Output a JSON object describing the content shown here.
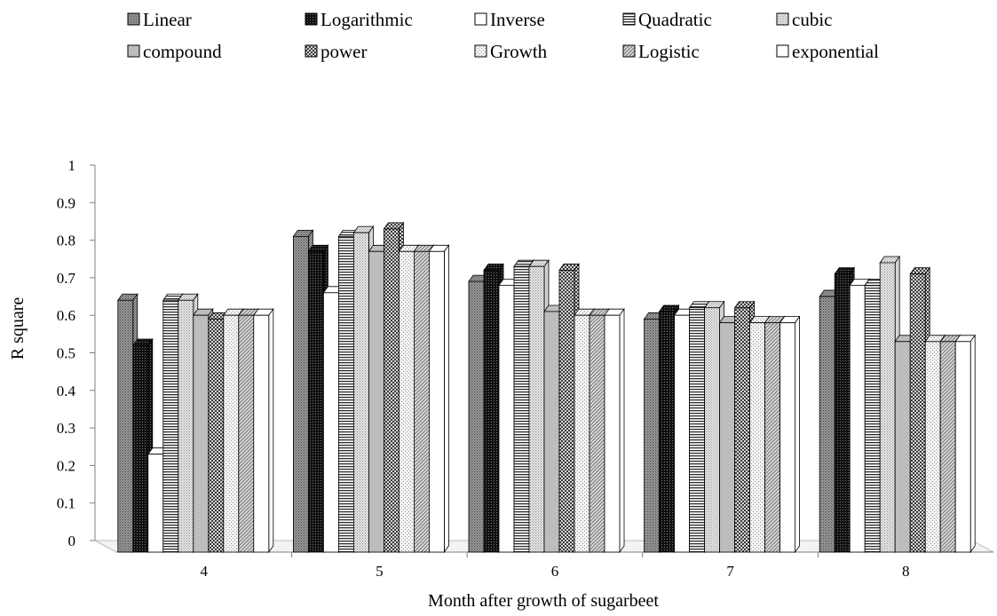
{
  "chart_data": {
    "type": "bar",
    "xlabel": "Month after growth of sugarbeet",
    "ylabel": "R square",
    "ylim": [
      0,
      1
    ],
    "yticks": [
      "0",
      "0.1",
      "0.2",
      "0.3",
      "0.4",
      "0.5",
      "0.6",
      "0.7",
      "0.8",
      "0.9",
      "1"
    ],
    "categories": [
      "4",
      "5",
      "6",
      "7",
      "8"
    ],
    "legend_position": "top",
    "grid": false,
    "series": [
      {
        "name": "Linear",
        "pattern": "dots-gray",
        "values": [
          0.64,
          0.81,
          0.69,
          0.59,
          0.65
        ]
      },
      {
        "name": "Logarithmic",
        "pattern": "dots-black",
        "values": [
          0.52,
          0.77,
          0.72,
          0.61,
          0.71
        ]
      },
      {
        "name": "Inverse",
        "pattern": "white",
        "values": [
          0.23,
          0.66,
          0.68,
          0.6,
          0.68
        ]
      },
      {
        "name": "Quadratic",
        "pattern": "hlines",
        "values": [
          0.64,
          0.81,
          0.73,
          0.62,
          0.68
        ]
      },
      {
        "name": "cubic",
        "pattern": "fine-dots",
        "values": [
          0.64,
          0.82,
          0.73,
          0.62,
          0.74
        ]
      },
      {
        "name": "compound",
        "pattern": "gray",
        "values": [
          0.6,
          0.77,
          0.61,
          0.58,
          0.53
        ]
      },
      {
        "name": "power",
        "pattern": "checker",
        "values": [
          0.59,
          0.83,
          0.72,
          0.62,
          0.71
        ]
      },
      {
        "name": "Growth",
        "pattern": "light-dots",
        "values": [
          0.6,
          0.77,
          0.6,
          0.58,
          0.53
        ]
      },
      {
        "name": "Logistic",
        "pattern": "diagonal",
        "values": [
          0.6,
          0.77,
          0.6,
          0.58,
          0.53
        ]
      },
      {
        "name": "exponential",
        "pattern": "white",
        "values": [
          0.6,
          0.77,
          0.6,
          0.58,
          0.53
        ]
      }
    ]
  }
}
